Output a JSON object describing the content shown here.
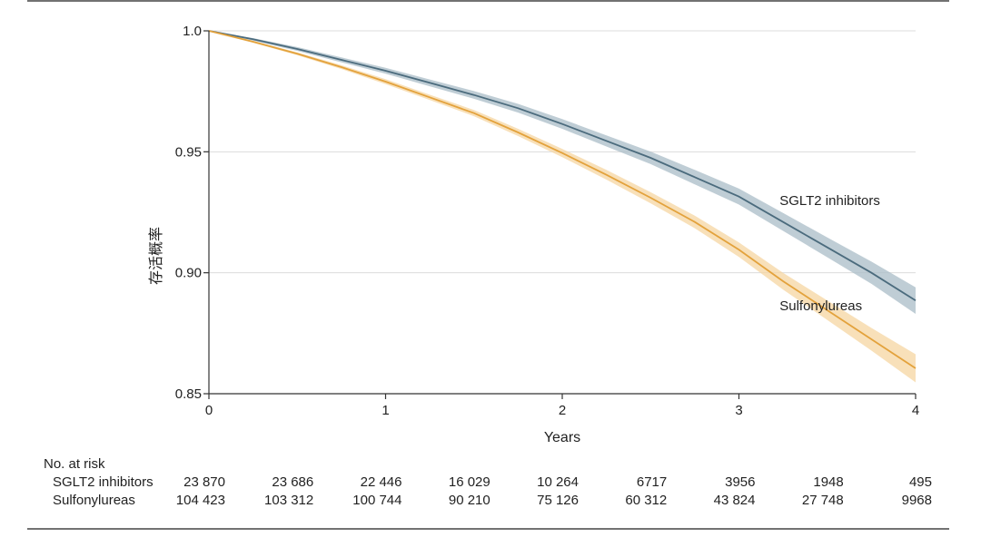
{
  "chart_data": {
    "type": "line",
    "ylabel": "存活概率",
    "xlabel": "Years",
    "xlim": [
      0,
      4
    ],
    "ylim": [
      0.85,
      1.0
    ],
    "x_ticks": [
      0,
      1,
      2,
      3,
      4
    ],
    "y_ticks": [
      {
        "value": 1.0,
        "label": "1.0"
      },
      {
        "value": 0.95,
        "label": "0.95"
      },
      {
        "value": 0.9,
        "label": "0.90"
      },
      {
        "value": 0.85,
        "label": "0.85"
      }
    ],
    "grid": "horizontal",
    "series": [
      {
        "name": "SGLT2 inhibitors",
        "color": "#4b6b7d",
        "band_color": "#a9bcc7",
        "x": [
          0,
          0.25,
          0.5,
          0.75,
          1.0,
          1.25,
          1.5,
          1.75,
          2.0,
          2.25,
          2.5,
          2.75,
          3.0,
          3.25,
          3.5,
          3.75,
          4.0
        ],
        "y": [
          1.0,
          0.9965,
          0.9925,
          0.988,
          0.9835,
          0.9785,
          0.9735,
          0.968,
          0.9615,
          0.9545,
          0.9475,
          0.9395,
          0.9315,
          0.921,
          0.9105,
          0.9,
          0.8885
        ],
        "ci_width": [
          0,
          0.0005,
          0.0008,
          0.001,
          0.0012,
          0.0014,
          0.0016,
          0.0018,
          0.002,
          0.0023,
          0.0026,
          0.003,
          0.0033,
          0.0037,
          0.0041,
          0.0046,
          0.0055
        ]
      },
      {
        "name": "Sulfonylureas",
        "color": "#e3a23c",
        "band_color": "#f6d6a2",
        "x": [
          0,
          0.25,
          0.5,
          0.75,
          1.0,
          1.25,
          1.5,
          1.75,
          2.0,
          2.25,
          2.5,
          2.75,
          3.0,
          3.25,
          3.5,
          3.75,
          4.0
        ],
        "y": [
          1.0,
          0.9955,
          0.9905,
          0.985,
          0.979,
          0.9725,
          0.966,
          0.958,
          0.9495,
          0.9405,
          0.931,
          0.921,
          0.9095,
          0.8965,
          0.8845,
          0.8725,
          0.8605
        ],
        "ci_width": [
          0,
          0.0004,
          0.0006,
          0.0008,
          0.001,
          0.0011,
          0.0013,
          0.0015,
          0.0017,
          0.002,
          0.0023,
          0.0026,
          0.003,
          0.0035,
          0.004,
          0.0047,
          0.0058
        ]
      }
    ],
    "labels": {
      "sglt2": {
        "text": "SGLT2 inhibitors",
        "x": 3.23,
        "y": 0.928
      },
      "sulf": {
        "text": "Sulfonylureas",
        "x": 3.23,
        "y": 0.8845
      }
    },
    "risk_table": {
      "title": "No. at risk",
      "x": [
        0,
        0.5,
        1,
        1.5,
        2,
        2.5,
        3,
        3.5,
        4
      ],
      "rows": [
        {
          "name": "SGLT2 inhibitors",
          "values": [
            "23 870",
            "23 686",
            "22 446",
            "16 029",
            "10 264",
            "6717",
            "3956",
            "1948",
            "495"
          ]
        },
        {
          "name": "Sulfonylureas",
          "values": [
            "104 423",
            "103 312",
            "100 744",
            "90 210",
            "75 126",
            "60 312",
            "43 824",
            "27 748",
            "9968"
          ]
        }
      ]
    }
  }
}
